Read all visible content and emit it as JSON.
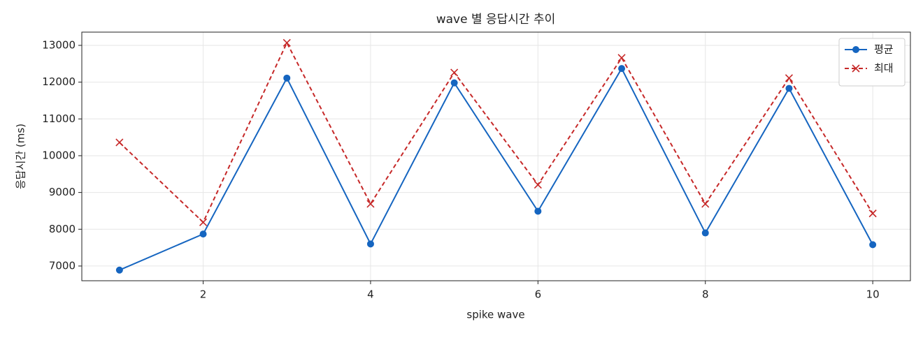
{
  "chart_data": {
    "type": "line",
    "title": "wave 별 응답시간 추이",
    "xlabel": "spike wave",
    "ylabel": "응답시간 (ms)",
    "x": [
      1,
      2,
      3,
      4,
      5,
      6,
      7,
      8,
      9,
      10
    ],
    "series": [
      {
        "name": "평균",
        "color": "#1565c0",
        "marker": "circle",
        "linestyle": "solid",
        "values": [
          6890,
          7870,
          12110,
          7600,
          11980,
          8490,
          12370,
          7900,
          11830,
          7580
        ]
      },
      {
        "name": "최대",
        "color": "#c62828",
        "marker": "x",
        "linestyle": "dashed",
        "values": [
          10360,
          8190,
          13070,
          8690,
          12260,
          9210,
          12660,
          8690,
          12110,
          8430
        ]
      }
    ],
    "xlim": [
      0.55,
      10.45
    ],
    "xticks": [
      2,
      4,
      6,
      8,
      10
    ],
    "ylim": [
      6600,
      13360
    ],
    "yticks": [
      7000,
      8000,
      9000,
      10000,
      11000,
      12000,
      13000
    ],
    "grid": true,
    "legend": "upper right"
  }
}
